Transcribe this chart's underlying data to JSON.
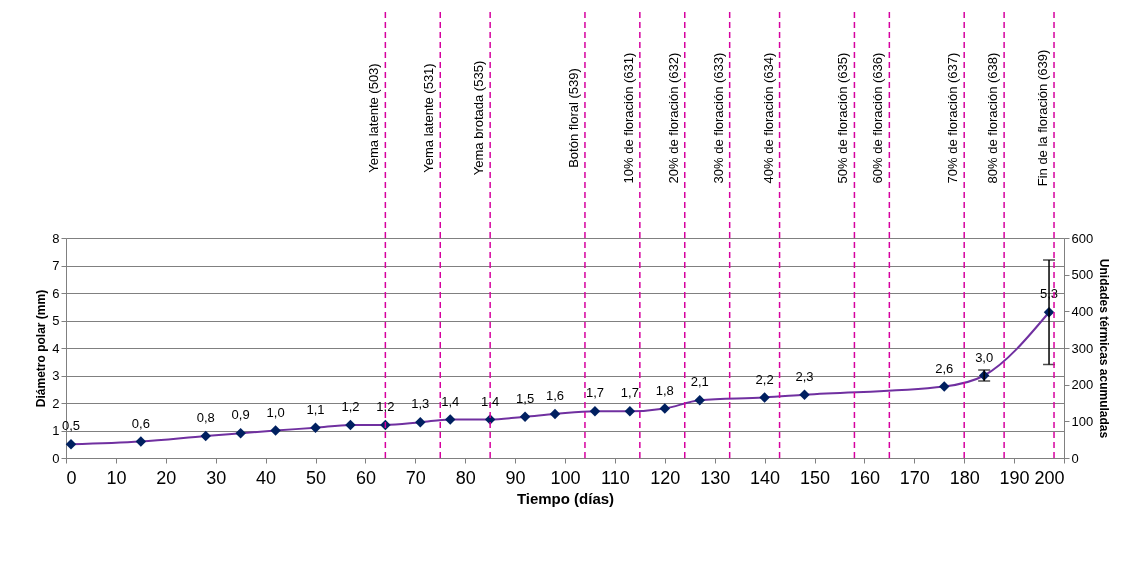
{
  "chart_data": {
    "type": "line",
    "xlabel": "Tiempo (días)",
    "ylabel": "Diámetro polar (mm)",
    "y2label": "Unidades térmicas acumuladas",
    "x": [
      1,
      15,
      28,
      35,
      42,
      50,
      57,
      64,
      71,
      77,
      85,
      92,
      98,
      106,
      113,
      120,
      127,
      140,
      148,
      176,
      184,
      197
    ],
    "series": [
      {
        "color": "#7030a0",
        "values": [
          0.5,
          0.6,
          0.8,
          0.9,
          1.0,
          1.1,
          1.2,
          1.2,
          1.3,
          1.4,
          1.4,
          1.5,
          1.6,
          1.7,
          1.7,
          1.8,
          2.1,
          2.2,
          2.3,
          2.6,
          3.0,
          5.3
        ],
        "value_labels": [
          "0,5",
          "0,6",
          "0,8",
          "0,9",
          "1,0",
          "1,1",
          "1,2",
          "1,2",
          "1,3",
          "1,4",
          "1,4",
          "1,5",
          "1,6",
          "1,7",
          "1,7",
          "1,8",
          "2,1",
          "2,2",
          "2,3",
          "2,6",
          "3,0",
          "5,3"
        ],
        "errors": [
          null,
          null,
          null,
          null,
          null,
          null,
          null,
          null,
          null,
          null,
          null,
          null,
          null,
          null,
          null,
          null,
          null,
          null,
          null,
          null,
          [
            2.8,
            3.2
          ],
          [
            3.4,
            7.2
          ]
        ]
      }
    ],
    "xlim": [
      0,
      200
    ],
    "xticks": [
      0,
      10,
      20,
      30,
      40,
      50,
      60,
      70,
      80,
      90,
      100,
      110,
      120,
      130,
      140,
      150,
      160,
      170,
      180,
      190,
      200
    ],
    "ylim": [
      0,
      8
    ],
    "yticks": [
      0,
      1,
      2,
      3,
      4,
      5,
      6,
      7,
      8
    ],
    "y2lim": [
      0,
      600
    ],
    "y2ticks": [
      0,
      100,
      200,
      300,
      400,
      500,
      600
    ],
    "grid": "y",
    "marker": "diamond",
    "line_style": "solid",
    "ref_lines": [
      {
        "axis": "x",
        "value": 64,
        "label": "Yema latente (503)",
        "color": "#d6009f",
        "line_style": "dashed"
      },
      {
        "axis": "x",
        "value": 75,
        "label": "Yema latente (531)",
        "color": "#d6009f",
        "line_style": "dashed"
      },
      {
        "axis": "x",
        "value": 85,
        "label": "Yema brotada (535)",
        "color": "#d6009f",
        "line_style": "dashed"
      },
      {
        "axis": "x",
        "value": 104,
        "label": "Botón floral (539)",
        "color": "#d6009f",
        "line_style": "dashed"
      },
      {
        "axis": "x",
        "value": 115,
        "label": "10% de floración (631)",
        "color": "#d6009f",
        "line_style": "dashed"
      },
      {
        "axis": "x",
        "value": 124,
        "label": "20% de floración (632)",
        "color": "#d6009f",
        "line_style": "dashed"
      },
      {
        "axis": "x",
        "value": 133,
        "label": "30% de floración (633)",
        "color": "#d6009f",
        "line_style": "dashed"
      },
      {
        "axis": "x",
        "value": 143,
        "label": "40% de floración (634)",
        "color": "#d6009f",
        "line_style": "dashed"
      },
      {
        "axis": "x",
        "value": 158,
        "label": "50% de floración (635)",
        "color": "#d6009f",
        "line_style": "dashed"
      },
      {
        "axis": "x",
        "value": 165,
        "label": "60% de floración (636)",
        "color": "#d6009f",
        "line_style": "dashed"
      },
      {
        "axis": "x",
        "value": 180,
        "label": "70% de floración (637)",
        "color": "#d6009f",
        "line_style": "dashed"
      },
      {
        "axis": "x",
        "value": 188,
        "label": "80% de floración (638)",
        "color": "#d6009f",
        "line_style": "dashed"
      },
      {
        "axis": "x",
        "value": 198,
        "label": "Fin de la floración (639)",
        "color": "#d6009f",
        "line_style": "dashed"
      }
    ]
  }
}
